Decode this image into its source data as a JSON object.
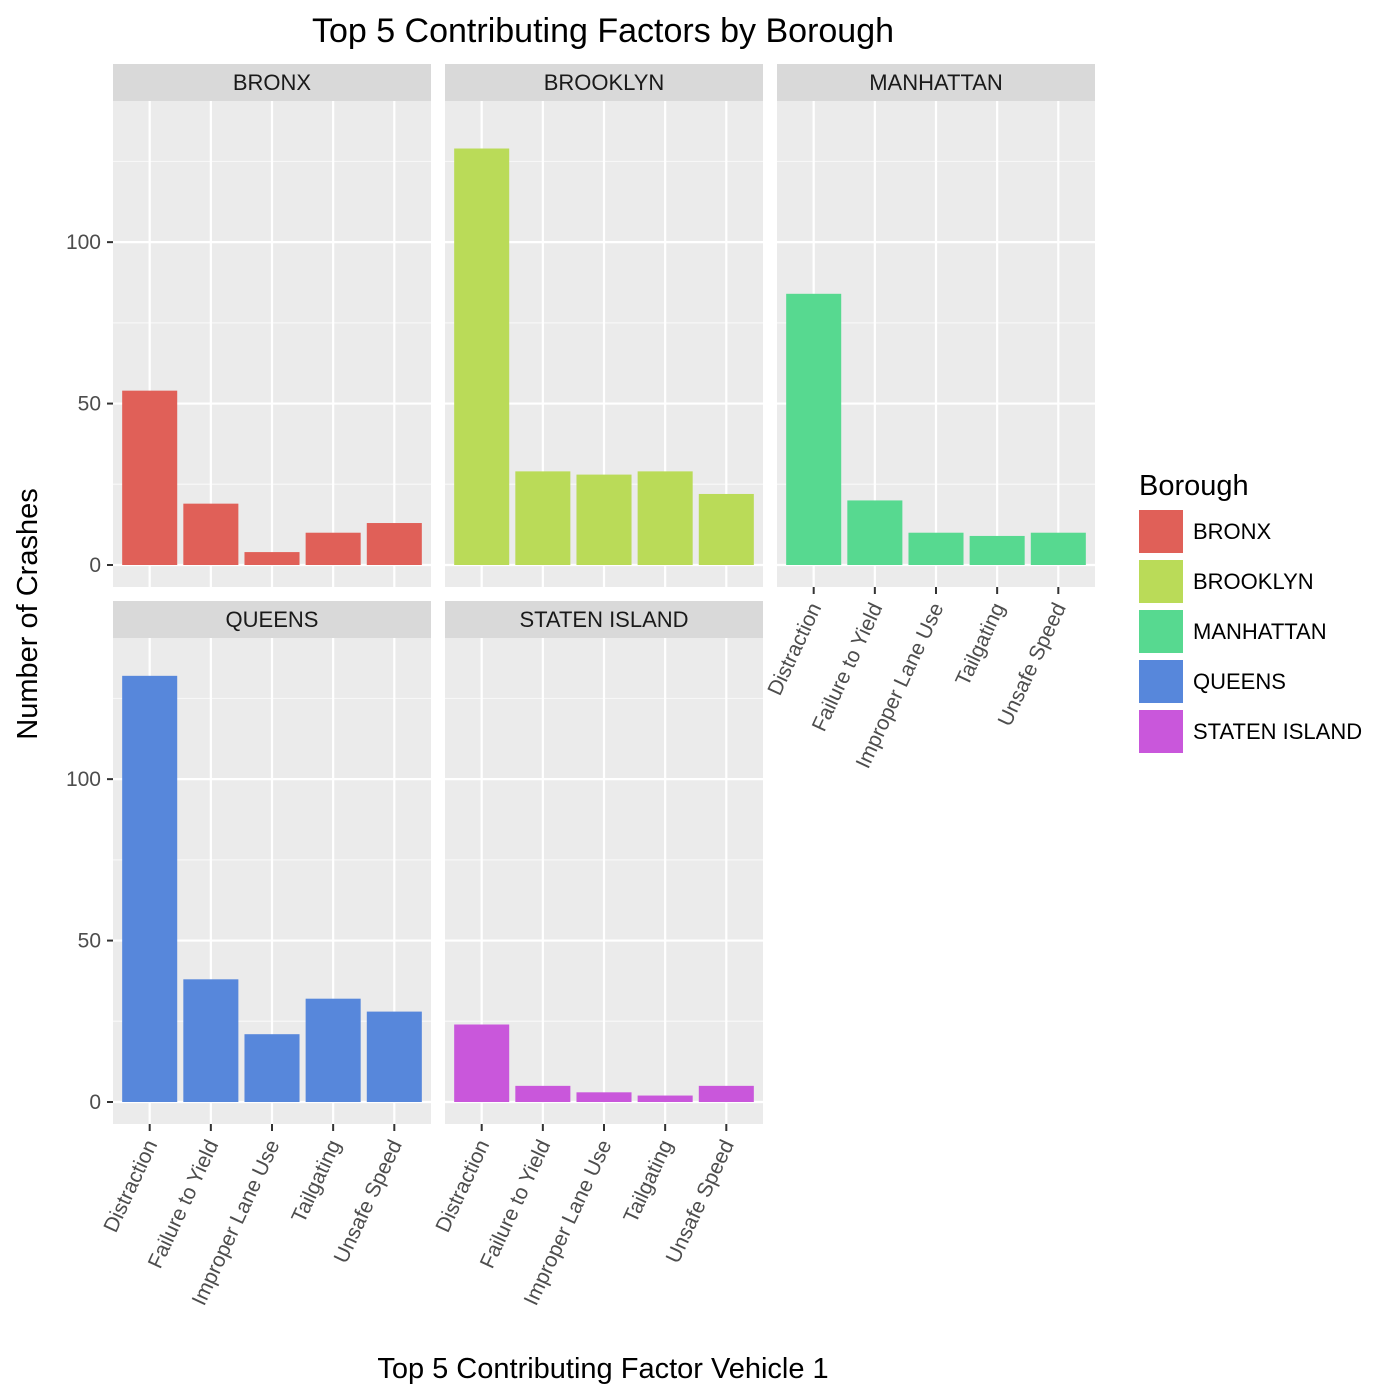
{
  "chart_data": {
    "type": "bar",
    "title": "Top 5 Contributing Factors by Borough",
    "xlabel": "Top 5 Contributing Factor Vehicle 1",
    "ylabel": "Number of Crashes",
    "categories": [
      "Distraction",
      "Failure to Yield",
      "Improper Lane Use",
      "Tailgating",
      "Unsafe Speed"
    ],
    "ylim": [
      0,
      140
    ],
    "yticks": [
      0,
      50,
      100
    ],
    "facets": [
      {
        "name": "BRONX",
        "values": [
          54,
          19,
          4,
          10,
          13
        ]
      },
      {
        "name": "BROOKLYN",
        "values": [
          129,
          29,
          28,
          29,
          22
        ]
      },
      {
        "name": "MANHATTAN",
        "values": [
          84,
          20,
          10,
          9,
          10
        ]
      },
      {
        "name": "QUEENS",
        "values": [
          132,
          38,
          21,
          32,
          28
        ]
      },
      {
        "name": "STATEN ISLAND",
        "values": [
          24,
          5,
          3,
          2,
          5
        ]
      }
    ],
    "legend": {
      "title": "Borough",
      "placement": "right",
      "entries": [
        "BRONX",
        "BROOKLYN",
        "MANHATTAN",
        "QUEENS",
        "STATEN ISLAND"
      ]
    },
    "colors": {
      "BRONX": "#E06058",
      "BROOKLYN": "#BADB58",
      "MANHATTAN": "#57D990",
      "QUEENS": "#5787DB",
      "STATEN ISLAND": "#C957DB"
    },
    "grid": true,
    "layout": "facet_wrap 3 columns"
  }
}
